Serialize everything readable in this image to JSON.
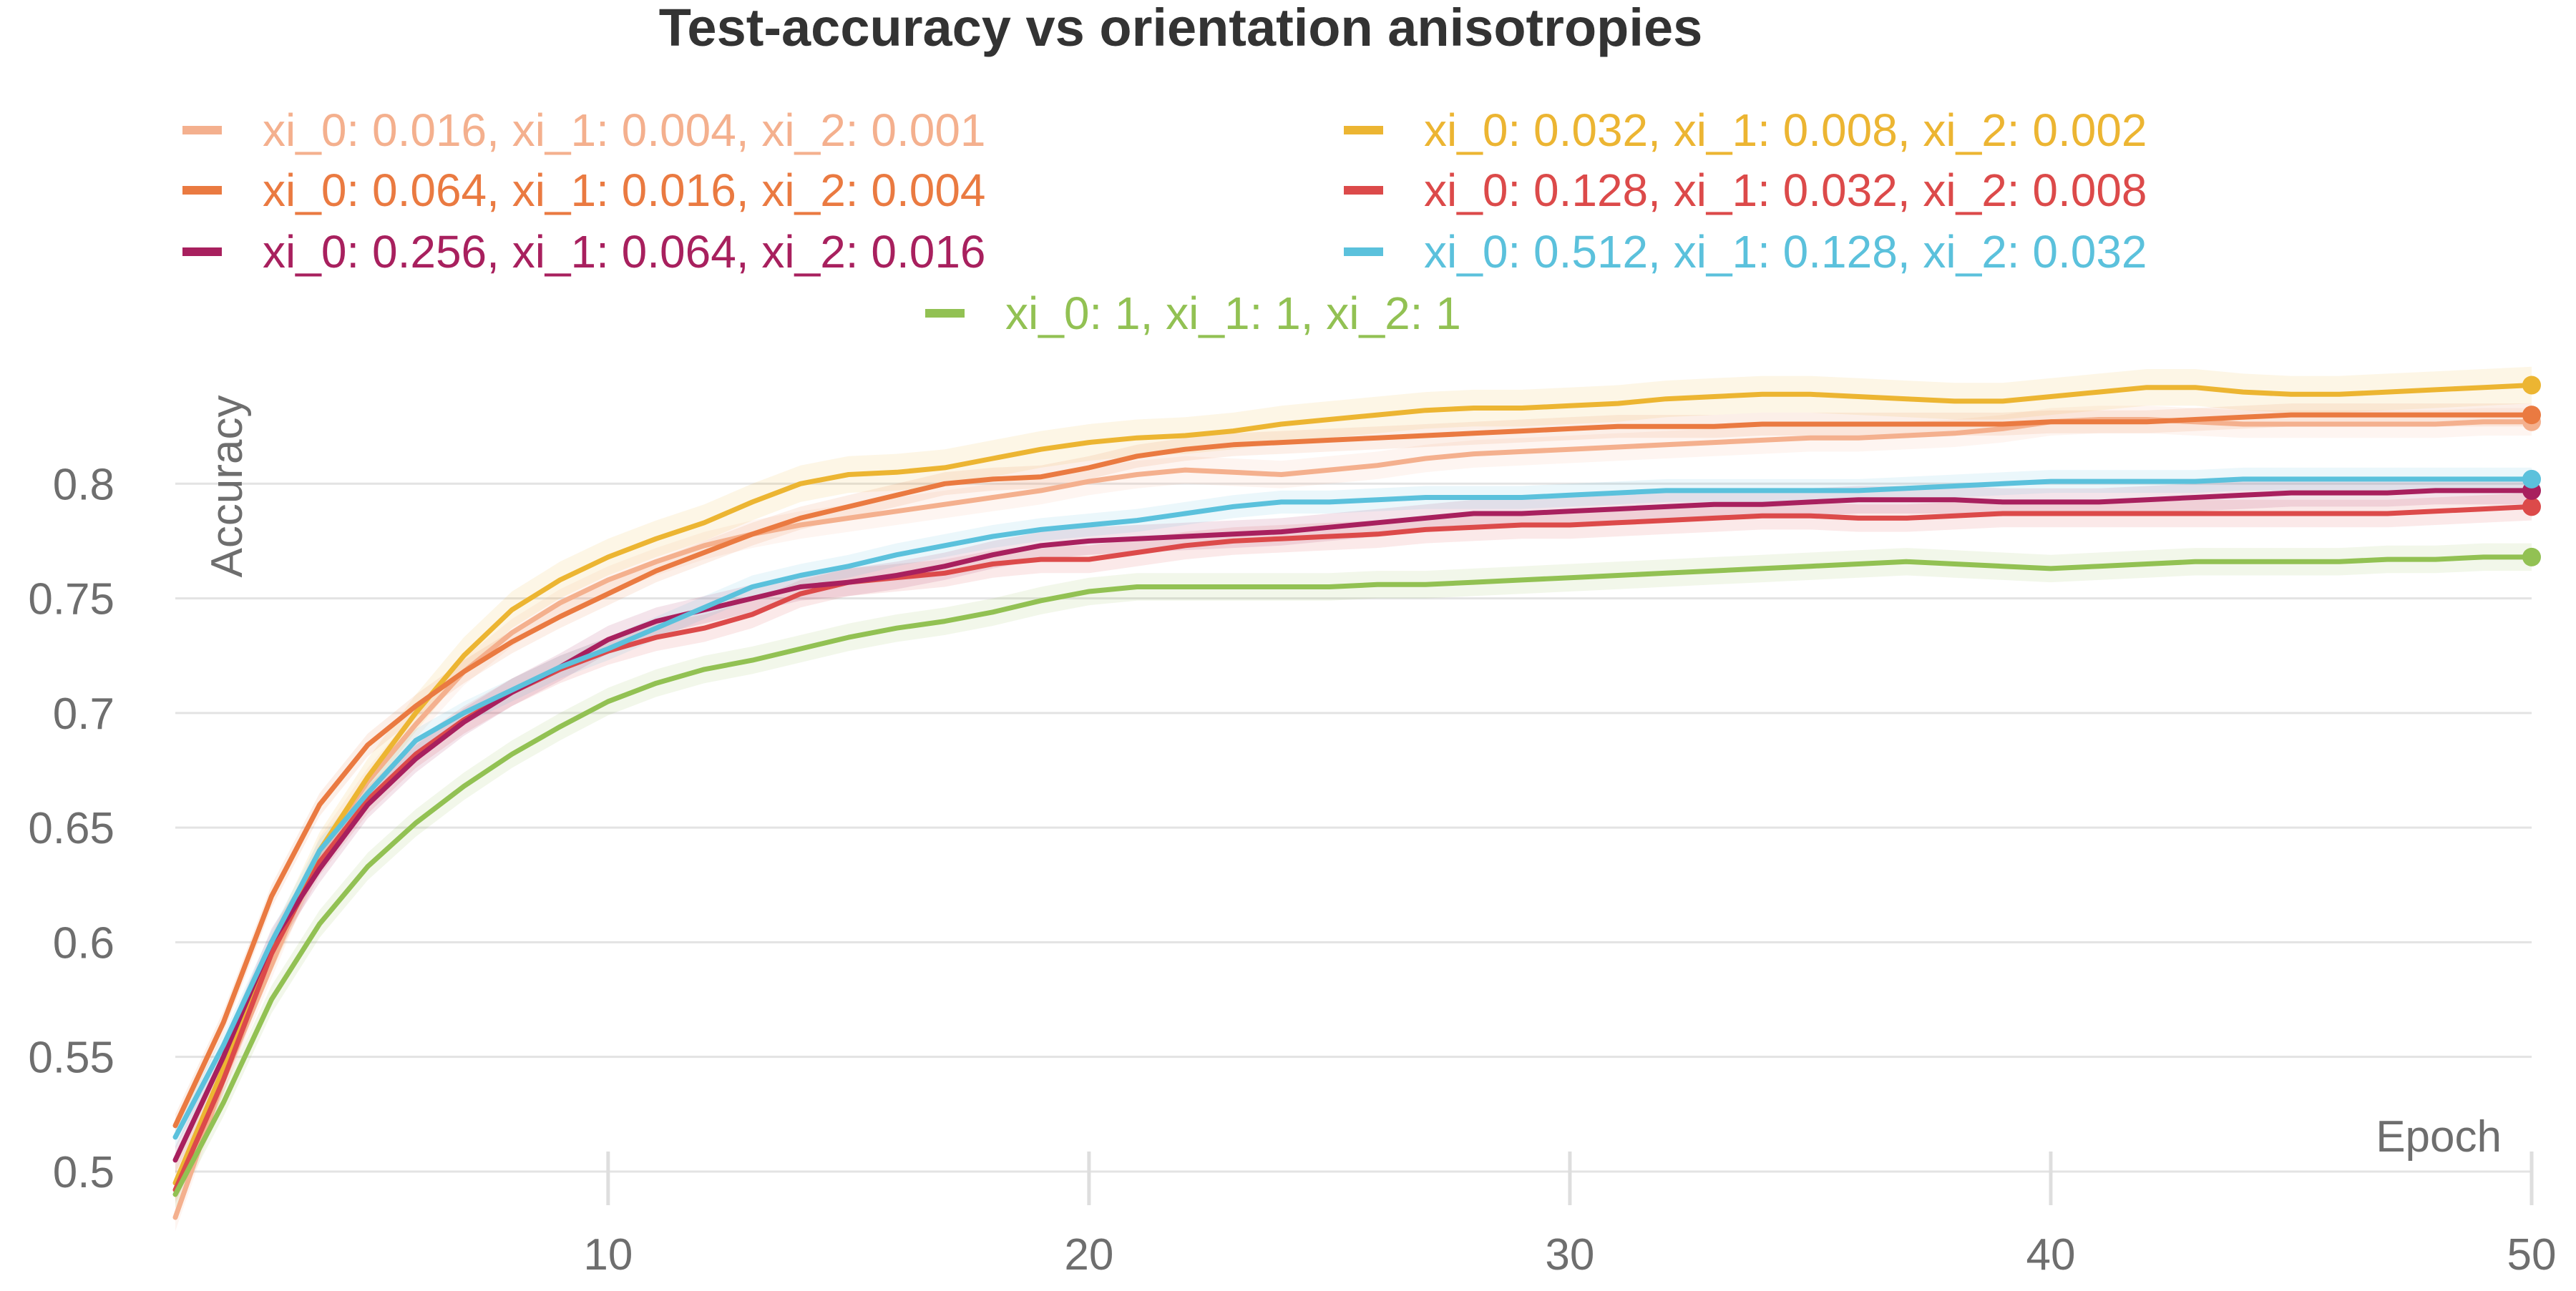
{
  "chart_data": {
    "type": "line",
    "title": "Test-accuracy vs orientation anisotropies",
    "xlabel": "Epoch",
    "ylabel": "Accuracy",
    "xlim": [
      1,
      50
    ],
    "ylim": [
      0.49,
      0.855
    ],
    "xticks": [
      10,
      20,
      30,
      40,
      50
    ],
    "xtick_labels": [
      "10",
      "20",
      "30",
      "40",
      "50"
    ],
    "yticks": [
      0.5,
      0.55,
      0.6,
      0.65,
      0.7,
      0.75,
      0.8
    ],
    "ytick_labels": [
      "0.5",
      "0.55",
      "0.6",
      "0.65",
      "0.7",
      "0.75",
      "0.8"
    ],
    "grid": "horizontal",
    "legend_position": "top",
    "x": [
      1,
      2,
      3,
      4,
      5,
      6,
      7,
      8,
      9,
      10,
      11,
      12,
      13,
      14,
      15,
      16,
      17,
      18,
      19,
      20,
      21,
      22,
      23,
      24,
      25,
      26,
      27,
      28,
      29,
      30,
      31,
      32,
      33,
      34,
      35,
      36,
      37,
      38,
      39,
      40,
      41,
      42,
      43,
      44,
      45,
      46,
      47,
      48,
      49,
      50
    ],
    "series": [
      {
        "name": "xi_0: 0.016, xi_1: 0.004, xi_2: 0.001",
        "color": "#f4b08e",
        "band": 0.006,
        "values": [
          0.48,
          0.54,
          0.59,
          0.64,
          0.67,
          0.695,
          0.718,
          0.735,
          0.748,
          0.758,
          0.766,
          0.773,
          0.778,
          0.782,
          0.785,
          0.788,
          0.791,
          0.794,
          0.797,
          0.801,
          0.804,
          0.806,
          0.805,
          0.804,
          0.806,
          0.808,
          0.811,
          0.813,
          0.814,
          0.815,
          0.816,
          0.817,
          0.818,
          0.819,
          0.82,
          0.82,
          0.821,
          0.822,
          0.824,
          0.827,
          0.828,
          0.828,
          0.827,
          0.826,
          0.826,
          0.826,
          0.826,
          0.826,
          0.827,
          0.827
        ]
      },
      {
        "name": "xi_0: 0.032, xi_1: 0.008, xi_2: 0.002",
        "color": "#ecb532",
        "band": 0.008,
        "values": [
          0.495,
          0.545,
          0.595,
          0.64,
          0.672,
          0.7,
          0.725,
          0.745,
          0.758,
          0.768,
          0.776,
          0.783,
          0.792,
          0.8,
          0.804,
          0.805,
          0.807,
          0.811,
          0.815,
          0.818,
          0.82,
          0.821,
          0.823,
          0.826,
          0.828,
          0.83,
          0.832,
          0.833,
          0.833,
          0.834,
          0.835,
          0.837,
          0.838,
          0.839,
          0.839,
          0.838,
          0.837,
          0.836,
          0.836,
          0.838,
          0.84,
          0.842,
          0.842,
          0.84,
          0.839,
          0.839,
          0.84,
          0.841,
          0.842,
          0.843
        ]
      },
      {
        "name": "xi_0: 0.064, xi_1: 0.016, xi_2: 0.004",
        "color": "#ea7a41",
        "band": 0.005,
        "values": [
          0.52,
          0.565,
          0.62,
          0.66,
          0.686,
          0.703,
          0.718,
          0.731,
          0.742,
          0.752,
          0.762,
          0.77,
          0.778,
          0.785,
          0.79,
          0.795,
          0.8,
          0.802,
          0.803,
          0.807,
          0.812,
          0.815,
          0.817,
          0.818,
          0.819,
          0.82,
          0.821,
          0.822,
          0.823,
          0.824,
          0.825,
          0.825,
          0.825,
          0.826,
          0.826,
          0.826,
          0.826,
          0.826,
          0.826,
          0.827,
          0.827,
          0.827,
          0.828,
          0.829,
          0.83,
          0.83,
          0.83,
          0.83,
          0.83,
          0.83
        ]
      },
      {
        "name": "xi_0: 0.128, xi_1: 0.032, xi_2: 0.008",
        "color": "#dc4a4a",
        "band": 0.006,
        "values": [
          0.492,
          0.54,
          0.595,
          0.635,
          0.662,
          0.682,
          0.697,
          0.709,
          0.719,
          0.727,
          0.733,
          0.737,
          0.743,
          0.752,
          0.757,
          0.759,
          0.761,
          0.765,
          0.767,
          0.767,
          0.77,
          0.773,
          0.775,
          0.776,
          0.777,
          0.778,
          0.78,
          0.781,
          0.782,
          0.782,
          0.783,
          0.784,
          0.785,
          0.786,
          0.786,
          0.785,
          0.785,
          0.786,
          0.787,
          0.787,
          0.787,
          0.787,
          0.787,
          0.787,
          0.787,
          0.787,
          0.787,
          0.788,
          0.789,
          0.79
        ]
      },
      {
        "name": "xi_0: 0.256, xi_1: 0.064, xi_2: 0.016",
        "color": "#a8205e",
        "band": 0.006,
        "values": [
          0.505,
          0.55,
          0.6,
          0.632,
          0.66,
          0.68,
          0.696,
          0.709,
          0.72,
          0.732,
          0.74,
          0.745,
          0.75,
          0.755,
          0.757,
          0.76,
          0.764,
          0.769,
          0.773,
          0.775,
          0.776,
          0.777,
          0.778,
          0.779,
          0.781,
          0.783,
          0.785,
          0.787,
          0.787,
          0.788,
          0.789,
          0.79,
          0.791,
          0.791,
          0.792,
          0.793,
          0.793,
          0.793,
          0.792,
          0.792,
          0.792,
          0.793,
          0.794,
          0.795,
          0.796,
          0.796,
          0.796,
          0.797,
          0.797,
          0.797
        ]
      },
      {
        "name": "xi_0: 0.512, xi_1: 0.128, xi_2: 0.032",
        "color": "#5bc1dc",
        "band": 0.005,
        "values": [
          0.515,
          0.555,
          0.6,
          0.64,
          0.665,
          0.688,
          0.7,
          0.71,
          0.72,
          0.728,
          0.737,
          0.746,
          0.755,
          0.76,
          0.764,
          0.769,
          0.773,
          0.777,
          0.78,
          0.782,
          0.784,
          0.787,
          0.79,
          0.792,
          0.792,
          0.793,
          0.794,
          0.794,
          0.794,
          0.795,
          0.796,
          0.797,
          0.797,
          0.797,
          0.797,
          0.797,
          0.798,
          0.799,
          0.8,
          0.801,
          0.801,
          0.801,
          0.801,
          0.802,
          0.802,
          0.802,
          0.802,
          0.802,
          0.802,
          0.802
        ]
      },
      {
        "name": "xi_0: 1, xi_1: 1, xi_2: 1",
        "color": "#92c153",
        "band": 0.006,
        "values": [
          0.49,
          0.53,
          0.575,
          0.608,
          0.633,
          0.652,
          0.668,
          0.682,
          0.694,
          0.705,
          0.713,
          0.719,
          0.723,
          0.728,
          0.733,
          0.737,
          0.74,
          0.744,
          0.749,
          0.753,
          0.755,
          0.755,
          0.755,
          0.755,
          0.755,
          0.756,
          0.756,
          0.757,
          0.758,
          0.759,
          0.76,
          0.761,
          0.762,
          0.763,
          0.764,
          0.765,
          0.766,
          0.765,
          0.764,
          0.763,
          0.764,
          0.765,
          0.766,
          0.766,
          0.766,
          0.766,
          0.767,
          0.767,
          0.768,
          0.768
        ]
      }
    ]
  }
}
